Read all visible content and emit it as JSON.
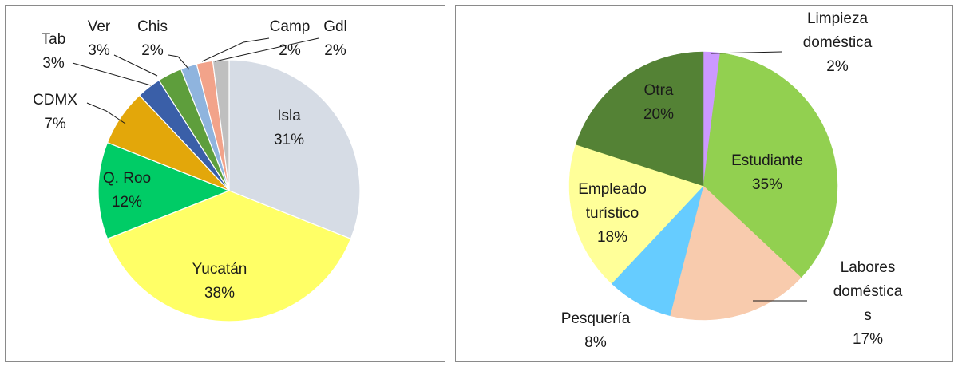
{
  "chart_data": [
    {
      "type": "pie",
      "title": "",
      "slices": [
        {
          "label": "Isla",
          "value": 31,
          "pct_label": "31%",
          "color": "#D6DCE5"
        },
        {
          "label": "Yucatán",
          "value": 38,
          "pct_label": "38%",
          "color": "#FFFF66"
        },
        {
          "label": "Q. Roo",
          "value": 12,
          "pct_label": "12%",
          "color": "#00CC66"
        },
        {
          "label": "CDMX",
          "value": 7,
          "pct_label": "7%",
          "color": "#E3A70A"
        },
        {
          "label": "Tab",
          "value": 3,
          "pct_label": "3%",
          "color": "#3A5FA8"
        },
        {
          "label": "Ver",
          "value": 3,
          "pct_label": "3%",
          "color": "#5E9E3C"
        },
        {
          "label": "Chis",
          "value": 2,
          "pct_label": "2%",
          "color": "#8FB4DE"
        },
        {
          "label": "Camp",
          "value": 2,
          "pct_label": "2%",
          "color": "#F2A38A"
        },
        {
          "label": "Gdl",
          "value": 2,
          "pct_label": "2%",
          "color": "#BFBFBF"
        }
      ]
    },
    {
      "type": "pie",
      "title": "",
      "slices": [
        {
          "label": "Limpieza doméstica",
          "label_lines": [
            "Limpieza",
            "doméstica"
          ],
          "value": 2,
          "pct_label": "2%",
          "color": "#CC99FF"
        },
        {
          "label": "Estudiante",
          "label_lines": [
            "Estudiante"
          ],
          "value": 35,
          "pct_label": "35%",
          "color": "#92D050"
        },
        {
          "label": "Labores domésticas",
          "label_lines": [
            "Labores",
            "doméstica",
            "s"
          ],
          "value": 17,
          "pct_label": "17%",
          "color": "#F8CBAD"
        },
        {
          "label": "Pesquería",
          "label_lines": [
            "Pesquería"
          ],
          "value": 8,
          "pct_label": "8%",
          "color": "#66CCFF"
        },
        {
          "label": "Empleado turístico",
          "label_lines": [
            "Empleado",
            "turístico"
          ],
          "value": 18,
          "pct_label": "18%",
          "color": "#FFFF99"
        },
        {
          "label": "Otra",
          "label_lines": [
            "Otra"
          ],
          "value": 20,
          "pct_label": "20%",
          "color": "#548235"
        }
      ]
    }
  ]
}
